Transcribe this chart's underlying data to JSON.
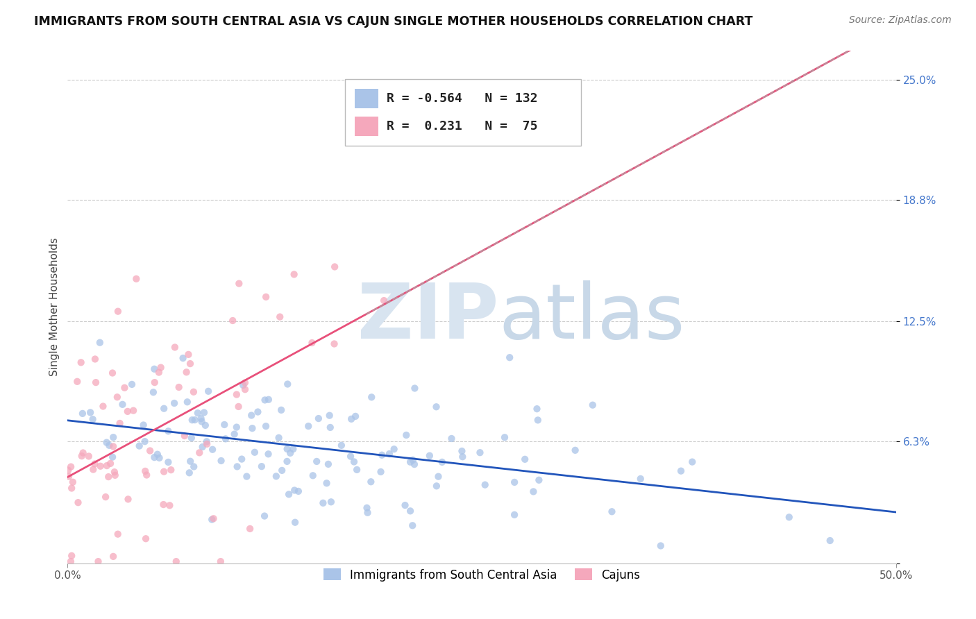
{
  "title": "IMMIGRANTS FROM SOUTH CENTRAL ASIA VS CAJUN SINGLE MOTHER HOUSEHOLDS CORRELATION CHART",
  "source_text": "Source: ZipAtlas.com",
  "ylabel": "Single Mother Households",
  "xlim": [
    0.0,
    0.5
  ],
  "ylim": [
    0.0,
    0.265
  ],
  "ytick_labels": [
    "",
    "6.3%",
    "12.5%",
    "18.8%",
    "25.0%"
  ],
  "ytick_vals": [
    0.0,
    0.063,
    0.125,
    0.188,
    0.25
  ],
  "xtick_labels": [
    "0.0%",
    "50.0%"
  ],
  "xtick_vals": [
    0.0,
    0.5
  ],
  "legend_r1": "-0.564",
  "legend_n1": "132",
  "legend_r2": "0.231",
  "legend_n2": "75",
  "blue_color": "#aac4e8",
  "pink_color": "#f5a8bc",
  "blue_line_color": "#2255bb",
  "pink_line_color": "#e8507a",
  "blue_seed": 42,
  "pink_seed": 7,
  "blue_n": 132,
  "pink_n": 75
}
